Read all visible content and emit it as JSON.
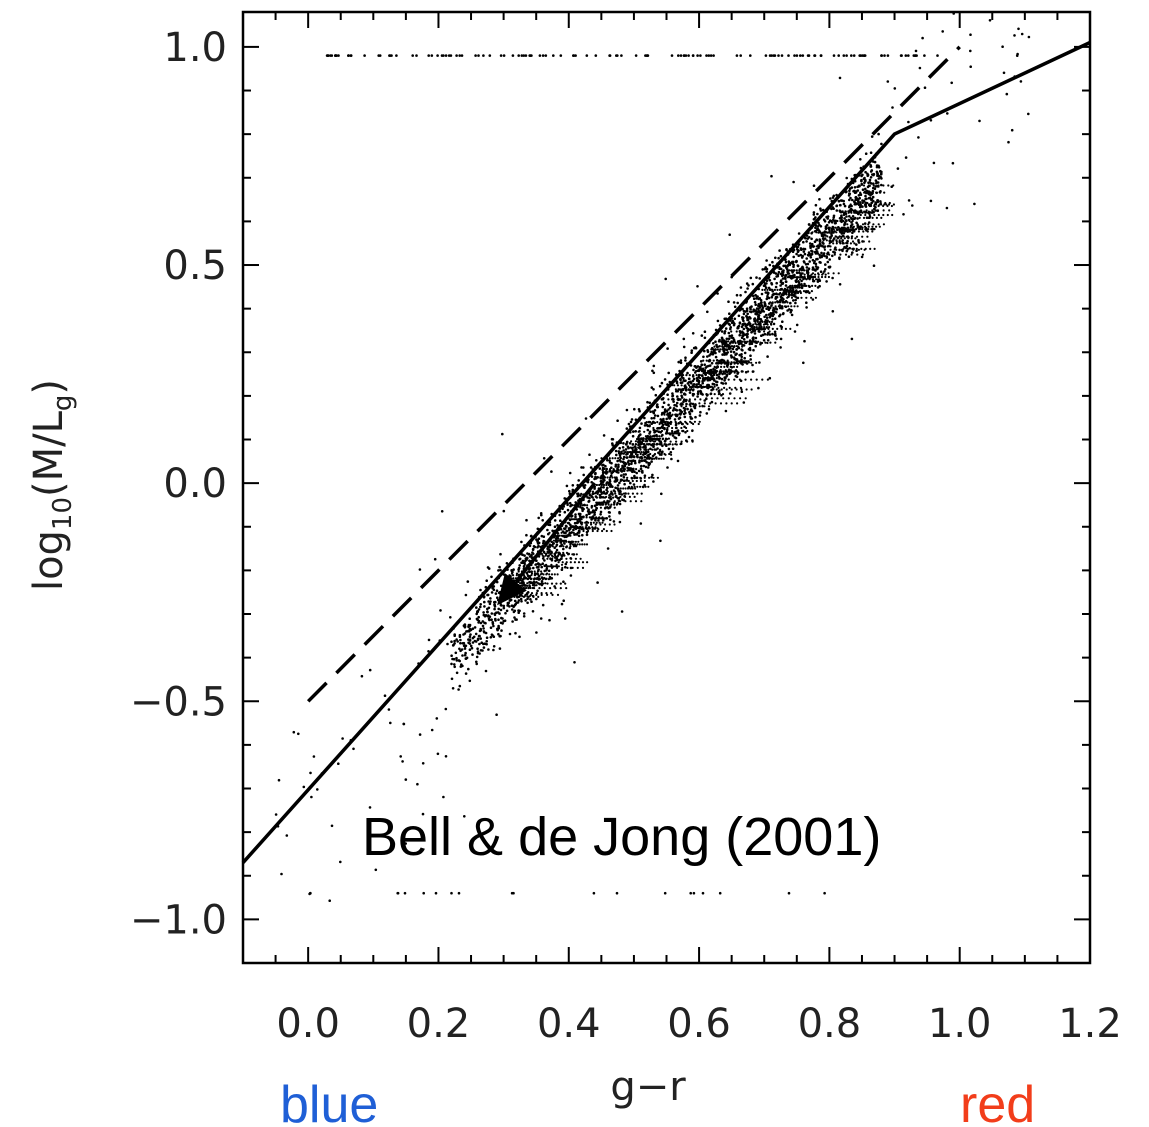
{
  "chart_data": {
    "type": "scatter",
    "title": "",
    "xlabel": "g−r",
    "ylabel": {
      "base": "log",
      "sub": "10",
      "open": "(M/L",
      "sub2": "g",
      "close": ")"
    },
    "xlim": [
      -0.1,
      1.2
    ],
    "ylim": [
      -1.1,
      1.08
    ],
    "x_ticks": [
      0.0,
      0.2,
      0.4,
      0.6,
      0.8,
      1.0,
      1.2
    ],
    "x_tick_labels": [
      "0.0",
      "0.2",
      "0.4",
      "0.6",
      "0.8",
      "1.0",
      "1.2"
    ],
    "y_ticks": [
      1.0,
      0.5,
      0.0,
      -0.5,
      -1.0
    ],
    "y_tick_labels": [
      "1.0",
      "0.5",
      "0.0",
      "−0.5",
      "−1.0"
    ],
    "grid": false,
    "annotation": "Bell & de Jong (2001)",
    "color_words": {
      "left": "blue",
      "right": "red"
    },
    "colors": {
      "left_word": "#1f5fd6",
      "right_word": "#f23d1a",
      "ink": "#000000"
    },
    "fits": [
      {
        "style": "solid",
        "x": [
          -0.1,
          0.9,
          1.2
        ],
        "y": [
          -0.87,
          0.8,
          1.01
        ]
      },
      {
        "style": "dashed",
        "x": [
          0.0,
          1.0
        ],
        "y": [
          -0.5,
          1.0
        ]
      }
    ],
    "arrow": {
      "from": [
        0.44,
        0.0
      ],
      "to": [
        0.29,
        -0.28
      ]
    },
    "scatter_model": {
      "trend_x": [
        0.1,
        0.95
      ],
      "trend_y": [
        -0.6,
        0.82
      ],
      "y_spread": 0.08,
      "saturation_y": 0.98
    }
  }
}
